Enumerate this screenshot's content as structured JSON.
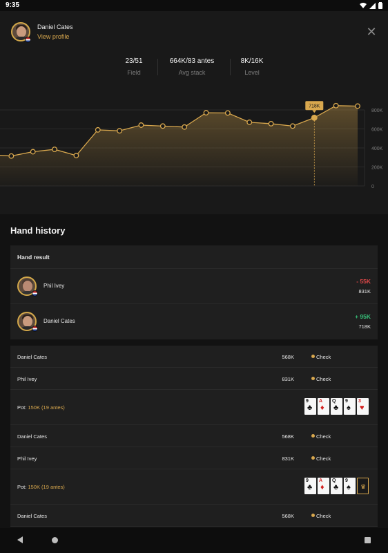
{
  "status_bar": {
    "time": "9:35"
  },
  "profile": {
    "name": "Daniel Cates",
    "link": "View profile"
  },
  "stats": [
    {
      "value": "23/51",
      "label": "Field"
    },
    {
      "value": "664K/83 antes",
      "label": "Avg stack"
    },
    {
      "value": "8K/16K",
      "label": "Level"
    }
  ],
  "chart_data": {
    "type": "area",
    "y_ticks": [
      "800K",
      "600K",
      "400K",
      "200K",
      "0"
    ],
    "ylim": [
      0,
      800000
    ],
    "values": [
      330000,
      315000,
      360000,
      385000,
      320000,
      590000,
      580000,
      640000,
      630000,
      620000,
      770000,
      768000,
      670000,
      655000,
      630000,
      718000,
      845000,
      840000
    ],
    "highlight_index": 15,
    "highlight_label": "718K",
    "accent": "#d9a84e"
  },
  "hand_history": {
    "title": "Hand history",
    "result_header": "Hand result",
    "results": [
      {
        "name": "Phil Ivey",
        "delta": "- 55K",
        "stack": "831K",
        "sign": "neg"
      },
      {
        "name": "Daniel Cates",
        "delta": "+ 95K",
        "stack": "718K",
        "sign": "pos"
      }
    ],
    "rounds": [
      {
        "actions": [
          {
            "name": "Daniel Cates",
            "amount": "568K",
            "action": "Check"
          },
          {
            "name": "Phil Ivey",
            "amount": "831K",
            "action": "Check"
          }
        ],
        "pot_label": "Pot:",
        "pot_value": "150K (19 antes)",
        "cards": [
          {
            "rank": "9",
            "suit": "♣",
            "color": "black"
          },
          {
            "rank": "A",
            "suit": "♦",
            "color": "red"
          },
          {
            "rank": "Q",
            "suit": "♣",
            "color": "black"
          },
          {
            "rank": "9",
            "suit": "♠",
            "color": "black"
          },
          {
            "rank": "3",
            "suit": "♥",
            "color": "red"
          }
        ]
      },
      {
        "actions": [
          {
            "name": "Daniel Cates",
            "amount": "568K",
            "action": "Check"
          },
          {
            "name": "Phil Ivey",
            "amount": "831K",
            "action": "Check"
          }
        ],
        "pot_label": "Pot:",
        "pot_value": "150K (19 antes)",
        "cards": [
          {
            "rank": "9",
            "suit": "♣",
            "color": "black"
          },
          {
            "rank": "A",
            "suit": "♦",
            "color": "red"
          },
          {
            "rank": "Q",
            "suit": "♣",
            "color": "black"
          },
          {
            "rank": "9",
            "suit": "♠",
            "color": "black"
          },
          {
            "rank": "",
            "suit": "",
            "color": "hidden"
          }
        ]
      }
    ],
    "trailing_action": {
      "name": "Daniel Cates",
      "amount": "568K",
      "action": "Check"
    }
  }
}
